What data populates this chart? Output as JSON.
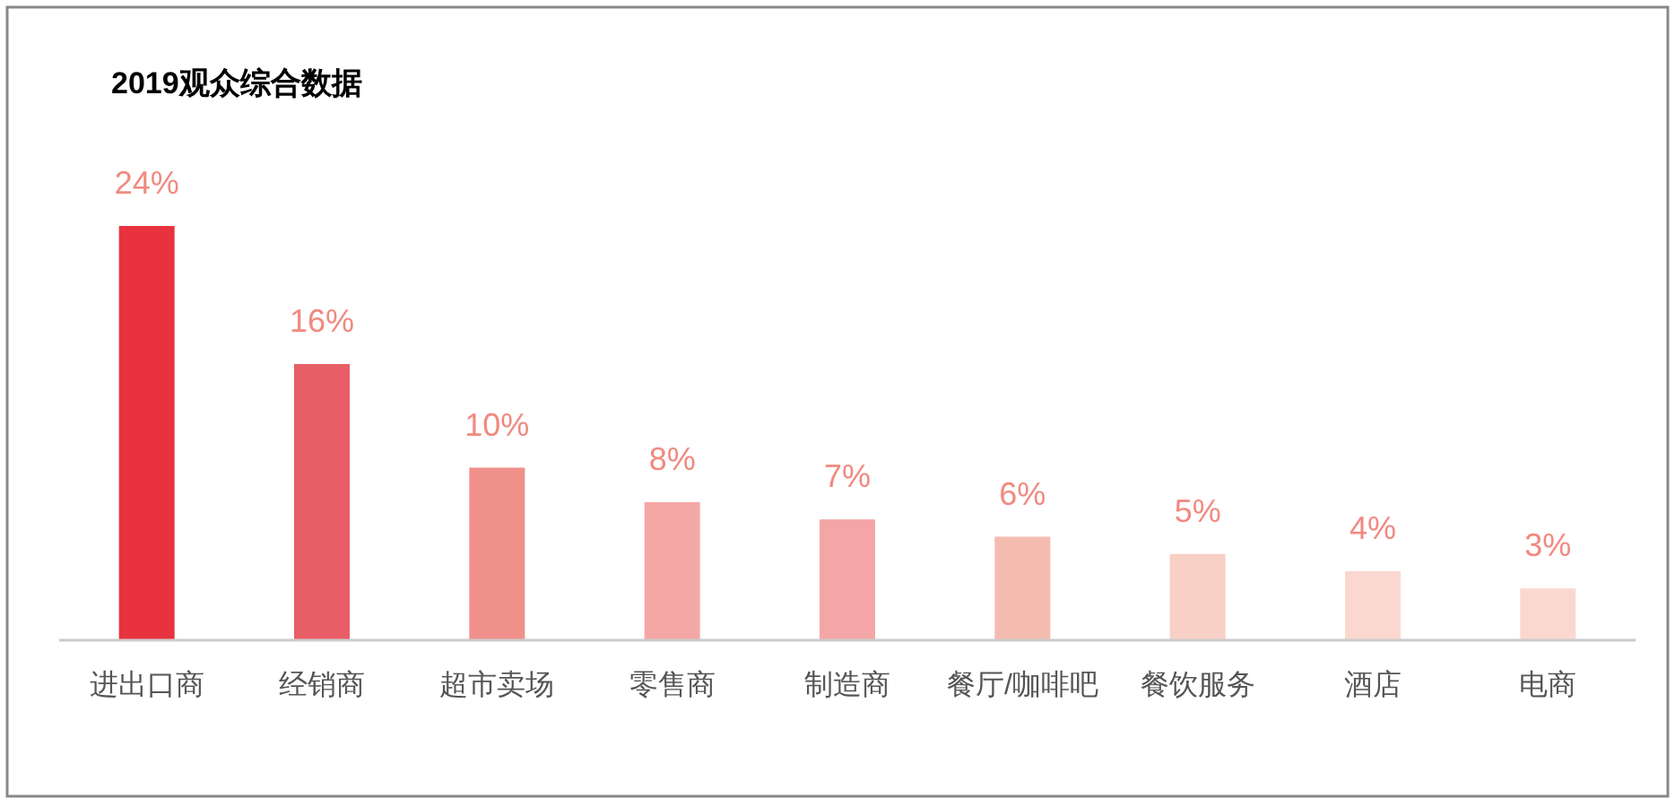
{
  "chart_data": {
    "type": "bar",
    "title": "2019观众综合数据",
    "categories": [
      "进出口商",
      "经销商",
      "超市卖场",
      "零售商",
      "制造商",
      "餐厅/咖啡吧",
      "餐饮服务",
      "酒店",
      "电商"
    ],
    "values": [
      24,
      16,
      10,
      8,
      7,
      6,
      5,
      4,
      3
    ],
    "value_labels": [
      "24%",
      "16%",
      "10%",
      "8%",
      "7%",
      "6%",
      "5%",
      "4%",
      "3%"
    ],
    "colors": [
      "#e8333f",
      "#e85e66",
      "#f0908a",
      "#f4a8a6",
      "#f4a6a6",
      "#f4bcb0",
      "#f8d0c6",
      "#fad8d0",
      "#fad8d0"
    ]
  }
}
